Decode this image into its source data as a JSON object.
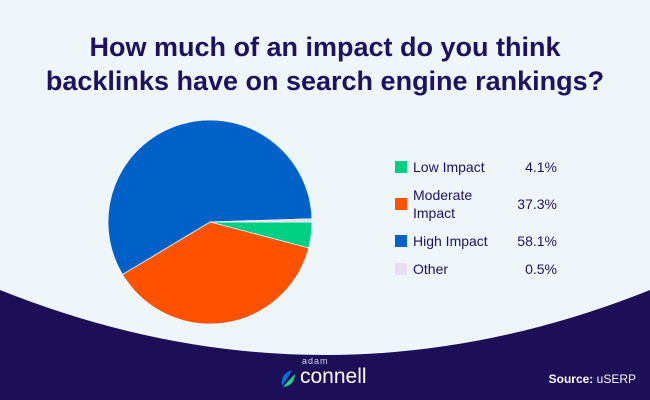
{
  "title_line1": "How much of an impact do you think",
  "title_line2": "backlinks have on search engine rankings?",
  "chart_data": {
    "type": "pie",
    "title": "How much of an impact do you think backlinks have on search engine rankings?",
    "categories": [
      "Low Impact",
      "Moderate Impact",
      "High Impact",
      "Other"
    ],
    "values": [
      4.1,
      37.3,
      58.1,
      0.5
    ],
    "value_labels": [
      "4.1%",
      "37.3%",
      "58.1%",
      "0.5%"
    ],
    "colors": [
      "#00d084",
      "#ff5200",
      "#0062c9",
      "#e9ddf5"
    ],
    "legend_position": "right"
  },
  "brand": {
    "small": "adam",
    "big": "connell"
  },
  "source": {
    "label": "Source:",
    "value": "uSERP"
  },
  "colors": {
    "background": "#eef6fa",
    "footer": "#1c0e57",
    "title": "#1e1160"
  }
}
